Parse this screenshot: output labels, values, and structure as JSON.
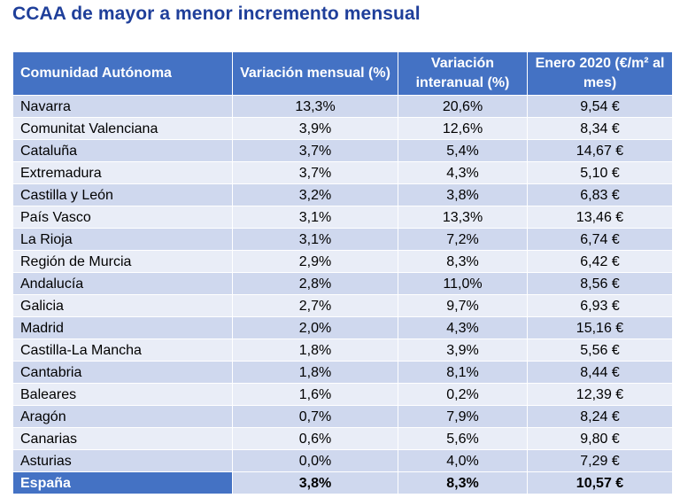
{
  "title": "CCAA de mayor a menor incremento mensual",
  "table": {
    "headers": [
      "Comunidad Autónoma",
      "Variación mensual (%)",
      "Variación interanual (%)",
      "Enero 2020 (€/m² al mes)"
    ],
    "rows": [
      [
        "Navarra",
        "13,3%",
        "20,6%",
        "9,54 €"
      ],
      [
        "Comunitat Valenciana",
        "3,9%",
        "12,6%",
        "8,34 €"
      ],
      [
        "Cataluña",
        "3,7%",
        "5,4%",
        "14,67 €"
      ],
      [
        "Extremadura",
        "3,7%",
        "4,3%",
        "5,10 €"
      ],
      [
        "Castilla y León",
        "3,2%",
        "3,8%",
        "6,83 €"
      ],
      [
        "País Vasco",
        "3,1%",
        "13,3%",
        "13,46 €"
      ],
      [
        "La Rioja",
        "3,1%",
        "7,2%",
        "6,74 €"
      ],
      [
        "Región de Murcia",
        "2,9%",
        "8,3%",
        "6,42 €"
      ],
      [
        "Andalucía",
        "2,8%",
        "11,0%",
        "8,56 €"
      ],
      [
        "Galicia",
        "2,7%",
        "9,7%",
        "6,93 €"
      ],
      [
        "Madrid",
        "2,0%",
        "4,3%",
        "15,16 €"
      ],
      [
        "Castilla-La Mancha",
        "1,8%",
        "3,9%",
        "5,56 €"
      ],
      [
        "Cantabria",
        "1,8%",
        "8,1%",
        "8,44 €"
      ],
      [
        "Baleares",
        "1,6%",
        "0,2%",
        "12,39 €"
      ],
      [
        "Aragón",
        "0,7%",
        "7,9%",
        "8,24 €"
      ],
      [
        "Canarias",
        "0,6%",
        "5,6%",
        "9,80 €"
      ],
      [
        "Asturias",
        "0,0%",
        "4,0%",
        "7,29 €"
      ]
    ],
    "total": [
      "España",
      "3,8%",
      "8,3%",
      "10,57 €"
    ]
  },
  "colors": {
    "title": "#1f3f9a",
    "header_bg": "#4472c4",
    "row_dark": "#cfd8ee",
    "row_light": "#e9edf7"
  }
}
